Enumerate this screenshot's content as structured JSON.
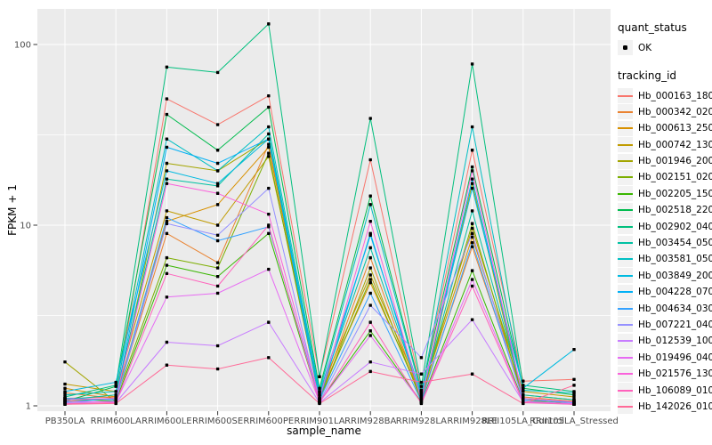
{
  "legend": {
    "quant_title": "quant_status",
    "ok_label": "OK",
    "tracking_title": "tracking_id"
  },
  "chart_data": {
    "type": "line",
    "title": "",
    "xlabel": "sample_name",
    "ylabel": "FPKM + 1",
    "x_axis": "categorical",
    "y_scale": "log10",
    "y_ticks": [
      1,
      10,
      100
    ],
    "y_tick_labels": [
      "1",
      "10",
      "100"
    ],
    "ylim": [
      0.95,
      160
    ],
    "grid": "white major and minor gridlines on gray panel",
    "legend_position": "right",
    "point_marker": "small black square at every data point (quant_status OK)",
    "colors": {
      "panel_bg": "#EBEBEB",
      "grid": "#FFFFFF",
      "tick": "#333333",
      "tick_label": "#4D4D4D",
      "point": "#000000"
    },
    "categories": [
      "PB350LA",
      "RRIM600LA",
      "RRIM600LE",
      "RRIM600SE",
      "RRIM600PE",
      "RRIM901LA",
      "RRIM928BA",
      "RRIM928LA",
      "RRIM928LE",
      "RRII105LA_Control",
      "RRII105LA_Stressed"
    ],
    "series": [
      {
        "name": "Hb_000163_180",
        "color": "#F8766D",
        "values": [
          1.1,
          1.12,
          50,
          36,
          52,
          1.45,
          23,
          1.22,
          26,
          1.37,
          1.4
        ]
      },
      {
        "name": "Hb_000342_020",
        "color": "#EA8331",
        "values": [
          1.18,
          1.1,
          9.0,
          6.2,
          28,
          1.1,
          6.6,
          1.1,
          7.6,
          1.12,
          1.06
        ]
      },
      {
        "name": "Hb_000613_250",
        "color": "#D89000",
        "values": [
          1.25,
          1.12,
          10.5,
          13,
          27,
          1.14,
          4.8,
          1.14,
          8.6,
          1.15,
          1.08
        ]
      },
      {
        "name": "Hb_000742_130",
        "color": "#C09B00",
        "values": [
          1.32,
          1.2,
          12,
          10,
          24,
          1.2,
          5.3,
          1.18,
          9.6,
          1.2,
          1.12
        ]
      },
      {
        "name": "Hb_001946_200",
        "color": "#A3A500",
        "values": [
          1.75,
          1.05,
          22,
          20,
          30,
          1.06,
          5.8,
          1.06,
          17,
          1.06,
          1.05
        ]
      },
      {
        "name": "Hb_002151_020",
        "color": "#7CAE00",
        "values": [
          1.06,
          1.1,
          6.6,
          5.8,
          25,
          1.1,
          5.0,
          1.1,
          10.2,
          1.1,
          1.02
        ]
      },
      {
        "name": "Hb_002205_150",
        "color": "#39B600",
        "values": [
          1.1,
          1.06,
          6.0,
          5.2,
          9.0,
          1.05,
          2.6,
          1.05,
          5.6,
          1.06,
          1.02
        ]
      },
      {
        "name": "Hb_002518_220",
        "color": "#00BB4E",
        "values": [
          1.06,
          1.28,
          41,
          26,
          45,
          1.25,
          14.5,
          1.2,
          21,
          1.25,
          1.15
        ]
      },
      {
        "name": "Hb_002902_040",
        "color": "#00BF7D",
        "values": [
          1.12,
          1.3,
          75,
          70,
          130,
          1.45,
          39,
          1.28,
          78,
          1.3,
          1.2
        ]
      },
      {
        "name": "Hb_003454_050",
        "color": "#00C1A3",
        "values": [
          1.08,
          1.15,
          18,
          16.5,
          32,
          1.15,
          7.5,
          1.12,
          12,
          1.15,
          1.08
        ]
      },
      {
        "name": "Hb_003581_050",
        "color": "#00BFC4",
        "values": [
          1.15,
          1.2,
          30,
          20,
          35,
          1.2,
          13,
          1.18,
          35,
          1.22,
          1.18
        ]
      },
      {
        "name": "Hb_003849_200",
        "color": "#00BAE0",
        "values": [
          1.2,
          1.35,
          20,
          17,
          30,
          1.18,
          8.8,
          1.15,
          16,
          1.25,
          2.05
        ]
      },
      {
        "name": "Hb_004228_070",
        "color": "#00B0F6",
        "values": [
          1.05,
          1.1,
          27,
          22,
          30,
          1.08,
          9.0,
          1.08,
          18,
          1.1,
          1.05
        ]
      },
      {
        "name": "Hb_004634_030",
        "color": "#35A2FF",
        "values": [
          1.1,
          1.08,
          11,
          8.2,
          9.8,
          1.08,
          4.2,
          1.06,
          8.0,
          1.08,
          1.04
        ]
      },
      {
        "name": "Hb_007221_040",
        "color": "#9590FF",
        "values": [
          1.04,
          1.06,
          10.2,
          8.8,
          16,
          1.05,
          3.6,
          1.85,
          9.0,
          1.06,
          1.02
        ]
      },
      {
        "name": "Hb_012539_100",
        "color": "#C77CFF",
        "values": [
          1.02,
          1.04,
          2.25,
          2.15,
          2.9,
          1.04,
          1.75,
          1.5,
          3.0,
          1.05,
          1.02
        ]
      },
      {
        "name": "Hb_019496_040",
        "color": "#E76BF3",
        "values": [
          1.06,
          1.05,
          4.0,
          4.2,
          5.7,
          1.05,
          2.45,
          1.04,
          5.0,
          1.05,
          1.03
        ]
      },
      {
        "name": "Hb_021576_130",
        "color": "#FA62DB",
        "values": [
          1.08,
          1.1,
          17,
          15,
          11.5,
          1.1,
          10.5,
          1.08,
          20,
          1.1,
          1.05
        ]
      },
      {
        "name": "Hb_106089_010",
        "color": "#FF62BC",
        "values": [
          1.03,
          1.04,
          5.4,
          4.6,
          10,
          1.04,
          2.9,
          1.03,
          4.6,
          1.04,
          1.02
        ]
      },
      {
        "name": "Hb_142026_010",
        "color": "#FF6A98",
        "values": [
          1.02,
          1.03,
          1.68,
          1.6,
          1.85,
          1.03,
          1.55,
          1.35,
          1.5,
          1.03,
          1.3
        ]
      }
    ]
  }
}
